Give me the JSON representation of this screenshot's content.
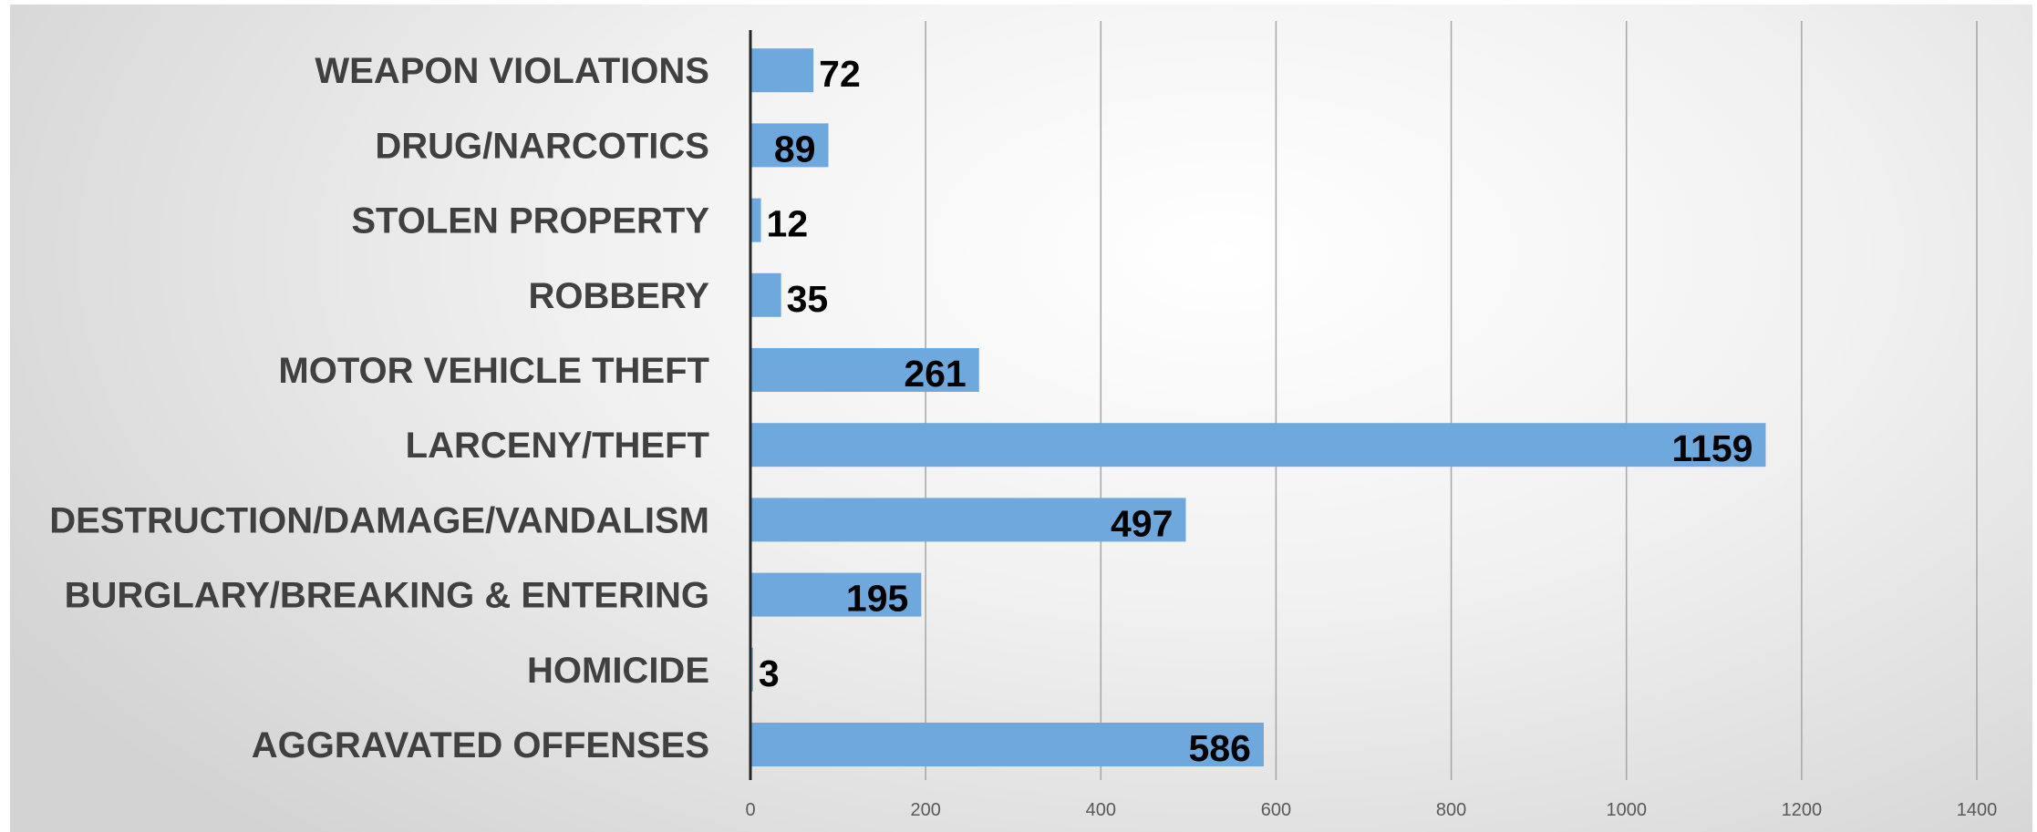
{
  "chart_data": {
    "type": "bar",
    "orientation": "horizontal",
    "categories": [
      "AGGRAVATED OFFENSES",
      "HOMICIDE",
      "BURGLARY/BREAKING & ENTERING",
      "DESTRUCTION/DAMAGE/VANDALISM",
      "LARCENY/THEFT",
      "MOTOR VEHICLE THEFT",
      "ROBBERY",
      "STOLEN PROPERTY",
      "DRUG/NARCOTICS",
      "WEAPON VIOLATIONS"
    ],
    "values": [
      586,
      3,
      195,
      497,
      1159,
      261,
      35,
      12,
      89,
      72
    ],
    "xlim": [
      0,
      1400
    ],
    "x_ticks": [
      "0",
      "200",
      "400",
      "600",
      "800",
      "1000",
      "1200",
      "1400"
    ],
    "grid": true,
    "legend": "none",
    "colors": {
      "bar": "#6fa8dc",
      "axis": "#262626",
      "grid": "#a6a6a6"
    }
  }
}
